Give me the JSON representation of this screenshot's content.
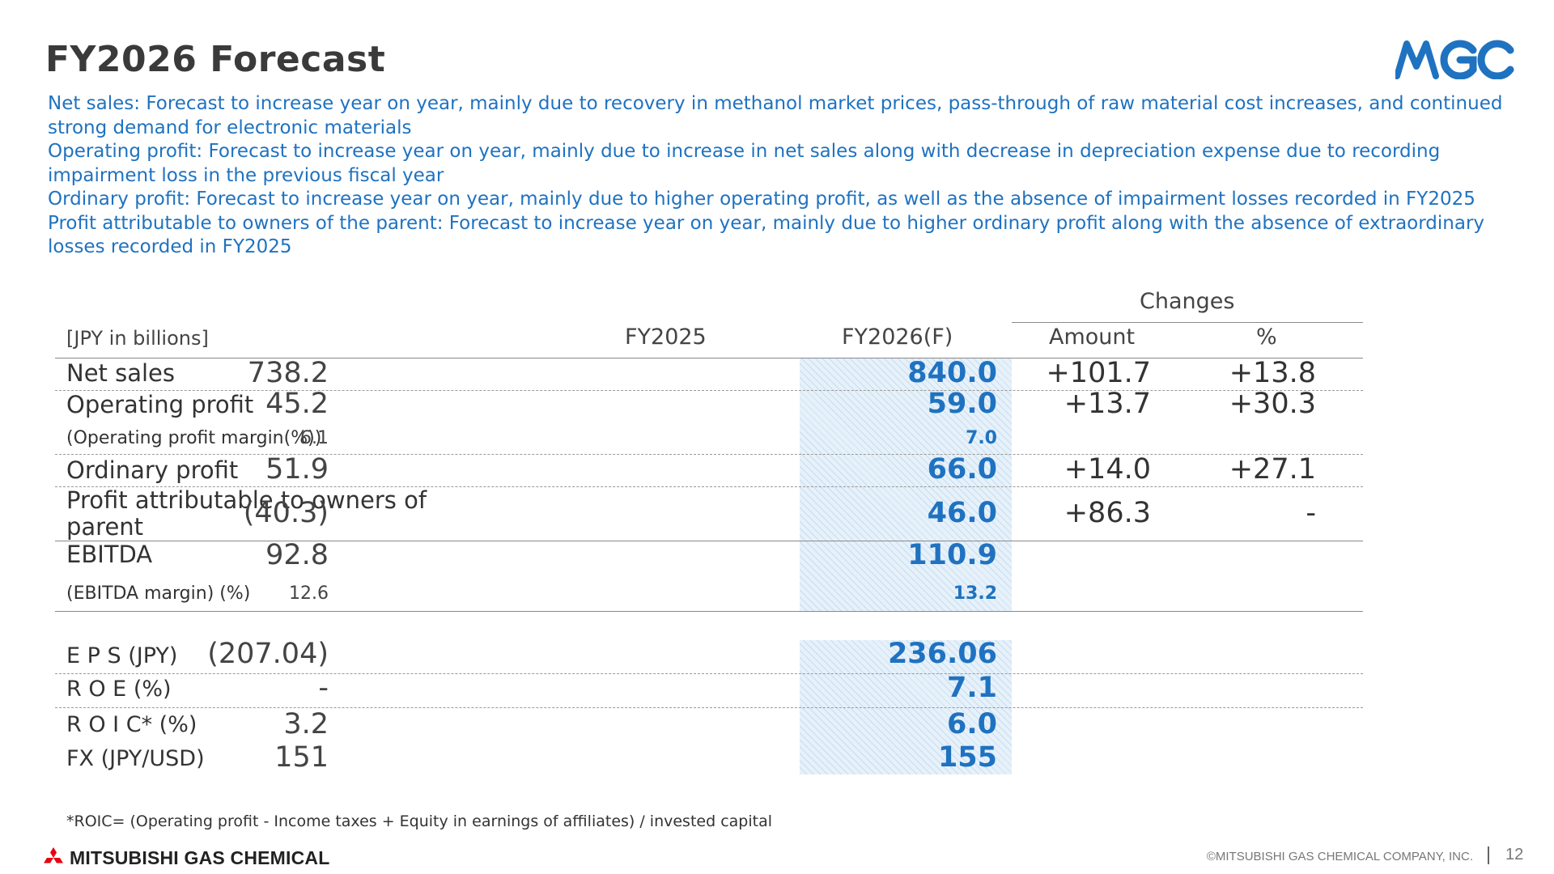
{
  "title": "FY2026 Forecast",
  "logo_text": "MGC",
  "summary": [
    "Net sales: Forecast to increase year on year, mainly due to recovery in methanol market prices, pass-through of raw material cost increases, and continued strong demand for electronic materials",
    "Operating profit: Forecast to increase year on year, mainly due to increase in net sales along with decrease in depreciation expense due to recording impairment loss in the previous fiscal year",
    "Ordinary profit: Forecast to increase year on year, mainly due to higher operating profit, as well as the absence of impairment losses recorded in FY2025",
    "Profit attributable to owners of the parent: Forecast to increase year on year, mainly due to higher ordinary profit along with the absence of extraordinary losses recorded in FY2025"
  ],
  "table": {
    "unit": "[JPY in billions]",
    "col_fy2025": "FY2025",
    "col_fy2026": "FY2026(F)",
    "changes": "Changes",
    "col_amount": "Amount",
    "col_pct": "%",
    "rows": [
      {
        "label": "Net sales",
        "fy2025": "738.2",
        "fy2026": "840.0",
        "amount": "+101.7",
        "pct": "+13.8"
      },
      {
        "label": "Operating profit",
        "fy2025": "45.2",
        "fy2026": "59.0",
        "amount": "+13.7",
        "pct": "+30.3"
      },
      {
        "label": "(Operating profit margin(%))",
        "fy2025": "6.1",
        "fy2026": "7.0"
      },
      {
        "label": "Ordinary profit",
        "fy2025": "51.9",
        "fy2026": "66.0",
        "amount": "+14.0",
        "pct": "+27.1"
      },
      {
        "label_line1": "Profit attributable to owners of",
        "label_line2": "parent",
        "fy2025": "(40.3)",
        "fy2026": "46.0",
        "amount": "+86.3",
        "pct": "-"
      },
      {
        "label": "EBITDA",
        "fy2025": "92.8",
        "fy2026": "110.9"
      },
      {
        "label": "(EBITDA margin) (%)",
        "fy2025": "12.6",
        "fy2026": "13.2"
      }
    ],
    "rows2": [
      {
        "label": "E P S (JPY)",
        "fy2025": "(207.04)",
        "fy2026": "236.06"
      },
      {
        "label": "R O E (%)",
        "fy2025": "-",
        "fy2026": "7.1"
      },
      {
        "label": "R O I C* (%)",
        "fy2025": "3.2",
        "fy2026": "6.0"
      },
      {
        "label": "FX (JPY/USD)",
        "fy2025": "151",
        "fy2026": "155"
      }
    ]
  },
  "footnote": "*ROIC= (Operating profit - Income taxes + Equity in earnings of affiliates) / invested capital",
  "footer": {
    "brand": "MITSUBISHI GAS CHEMICAL",
    "copyright": "©MITSUBISHI GAS CHEMICAL COMPANY, INC.",
    "page": "12"
  },
  "colors": {
    "accent": "#1f72c0",
    "text": "#333333",
    "hatch": "#e6f1fa"
  },
  "icons": [
    "mgc-logo-icon",
    "mitsubishi-three-diamonds-icon"
  ]
}
